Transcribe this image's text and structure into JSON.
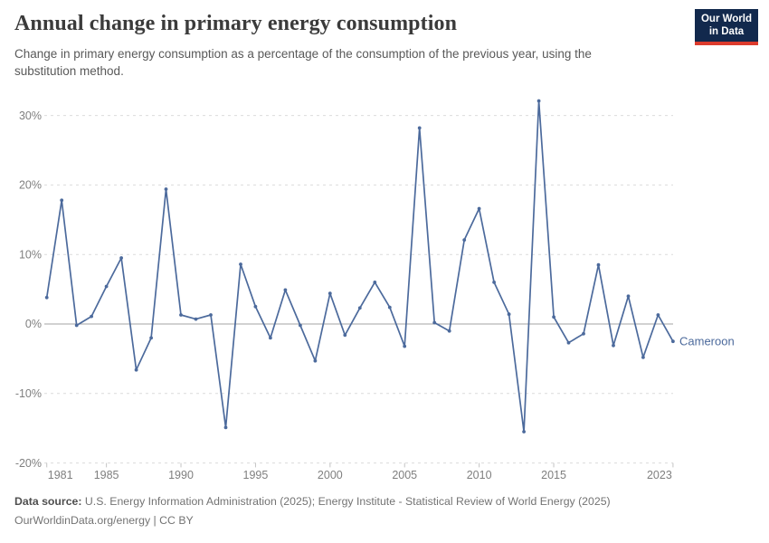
{
  "header": {
    "title": "Annual change in primary energy consumption",
    "subtitle": "Change in primary energy consumption as a percentage of the consumption of the previous year, using the substitution method.",
    "logo": {
      "line1": "Our World",
      "line2": "in Data"
    }
  },
  "colors": {
    "line": "#4C6A9C",
    "entity_label": "#4C6A9C",
    "logo_background": "#12294d",
    "logo_accent": "#dc3b2d",
    "grid": "#dcdcdc",
    "zero_line": "#a3a3a3",
    "axis_text": "#7f7f7f",
    "tick_mark": "#c4c4c4"
  },
  "chart_data": {
    "type": "line",
    "title": "Annual change in primary energy consumption",
    "entity_label": "Cameroon",
    "xlabel": "",
    "ylabel": "",
    "xlim": [
      1981,
      2023
    ],
    "ylim": [
      -20,
      30
    ],
    "grid": "horizontal-dashed",
    "legend_position": "end-of-line-label",
    "y_ticks": [
      30,
      20,
      10,
      0,
      -10,
      -20
    ],
    "y_tick_suffix": "%",
    "x_ticks": [
      1981,
      1985,
      1990,
      1995,
      2000,
      2005,
      2010,
      2015,
      2023
    ],
    "x": [
      1981,
      1982,
      1983,
      1984,
      1985,
      1986,
      1987,
      1988,
      1989,
      1990,
      1991,
      1992,
      1993,
      1994,
      1995,
      1996,
      1997,
      1998,
      1999,
      2000,
      2001,
      2002,
      2003,
      2004,
      2005,
      2006,
      2007,
      2008,
      2009,
      2010,
      2011,
      2012,
      2013,
      2014,
      2015,
      2016,
      2017,
      2018,
      2019,
      2020,
      2021,
      2022,
      2023
    ],
    "series": [
      {
        "name": "Cameroon",
        "values": [
          3.8,
          17.8,
          -0.2,
          1.1,
          5.4,
          9.5,
          -6.6,
          -2.0,
          19.4,
          1.3,
          0.7,
          1.3,
          -14.9,
          8.6,
          2.5,
          -2.0,
          4.9,
          -0.2,
          -5.3,
          4.4,
          -1.6,
          2.3,
          6.0,
          2.4,
          -3.2,
          28.2,
          0.2,
          -1.0,
          12.1,
          16.6,
          6.0,
          1.4,
          -15.5,
          32.1,
          1.0,
          -2.7,
          -1.4,
          8.5,
          -3.1,
          4.0,
          -4.8,
          1.3,
          -2.5
        ]
      }
    ]
  },
  "footer": {
    "data_source_label": "Data source:",
    "data_source_text": "U.S. Energy Information Administration (2025); Energy Institute - Statistical Review of World Energy (2025)",
    "attribution": "OurWorldinData.org/energy | CC BY"
  }
}
